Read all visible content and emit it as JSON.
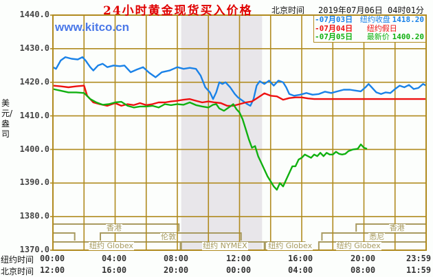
{
  "chart_data": {
    "type": "line",
    "title": "24小时黄金现货买入价格",
    "watermark": "www.kitco.cn",
    "timezone_label": "北京时间",
    "timestamp": "2019年07月06日 04时01分",
    "ylabel": "美元/盎司",
    "ylim": [
      1370,
      1440
    ],
    "y_ticks": [
      "1440.0",
      "1430.0",
      "1420.0",
      "1410.0",
      "1400.0",
      "1390.0",
      "1380.0",
      "1370.0"
    ],
    "x_rows": [
      {
        "label": "纽约时间",
        "ticks": [
          "00:00",
          "04:00",
          "08:00",
          "12:00",
          "16:00",
          "20:00",
          "23:59"
        ]
      },
      {
        "label": "北京时间",
        "ticks": [
          "12:00",
          "16:00",
          "20:00",
          "00:00",
          "04:00",
          "08:00",
          "11:59"
        ]
      }
    ],
    "grid": true,
    "legend_position": "top-right",
    "legend": [
      {
        "date": "-07月03日",
        "desc": "纽约收盘",
        "value": "1418.20",
        "color": "#1a82e8"
      },
      {
        "date": "-07月04日",
        "desc": "纽约假日",
        "value": "",
        "color": "#ee1010"
      },
      {
        "date": "-07月05日",
        "desc": "最新价",
        "value": "1400.20",
        "color": "#10b010"
      }
    ],
    "x_unit": "New York hour (0-24)",
    "series": [
      {
        "name": "07月03日",
        "color": "#1a82e8",
        "points": [
          [
            0,
            1424.5
          ],
          [
            0.2,
            1424
          ],
          [
            0.5,
            1426.5
          ],
          [
            0.8,
            1427.5
          ],
          [
            1.2,
            1427
          ],
          [
            1.6,
            1426.8
          ],
          [
            1.9,
            1427.5
          ],
          [
            2.1,
            1426.5
          ],
          [
            2.4,
            1424.5
          ],
          [
            2.6,
            1423.5
          ],
          [
            2.9,
            1425
          ],
          [
            3.2,
            1425.5
          ],
          [
            3.5,
            1424.5
          ],
          [
            3.9,
            1425
          ],
          [
            4.3,
            1424.8
          ],
          [
            4.6,
            1425
          ],
          [
            5,
            1423
          ],
          [
            5.4,
            1423.8
          ],
          [
            5.8,
            1424.5
          ],
          [
            6.2,
            1422.8
          ],
          [
            6.6,
            1421.5
          ],
          [
            7,
            1423
          ],
          [
            7.5,
            1423.5
          ],
          [
            8,
            1424.5
          ],
          [
            8.4,
            1424
          ],
          [
            8.8,
            1424.3
          ],
          [
            9.2,
            1424
          ],
          [
            9.5,
            1422
          ],
          [
            9.8,
            1418.5
          ],
          [
            10.1,
            1417
          ],
          [
            10.3,
            1415
          ],
          [
            10.5,
            1417
          ],
          [
            10.7,
            1420
          ],
          [
            10.9,
            1419.5
          ],
          [
            11.1,
            1420
          ],
          [
            11.4,
            1418.5
          ],
          [
            11.7,
            1416.5
          ],
          [
            11.9,
            1415.5
          ],
          [
            12.2,
            1414.5
          ],
          [
            12.5,
            1413.5
          ],
          [
            12.7,
            1413
          ],
          [
            12.9,
            1415
          ],
          [
            13.1,
            1419
          ],
          [
            13.3,
            1420.3
          ],
          [
            13.6,
            1419.5
          ],
          [
            13.9,
            1420.5
          ],
          [
            14.2,
            1419
          ],
          [
            14.5,
            1420.5
          ],
          [
            14.8,
            1420
          ],
          [
            15,
            1418.5
          ],
          [
            15.2,
            1416.5
          ],
          [
            15.5,
            1416
          ],
          [
            15.9,
            1416.3
          ],
          [
            16.3,
            1416.8
          ],
          [
            16.7,
            1416.3
          ],
          [
            17.1,
            1416.5
          ],
          [
            17.5,
            1417.2
          ],
          [
            17.9,
            1416.8
          ],
          [
            18.3,
            1417.3
          ],
          [
            18.7,
            1417.8
          ],
          [
            19.1,
            1417.8
          ],
          [
            19.5,
            1417.5
          ],
          [
            19.8,
            1417.3
          ],
          [
            20.1,
            1418.5
          ],
          [
            20.3,
            1419.5
          ],
          [
            20.5,
            1418.5
          ],
          [
            20.8,
            1417
          ],
          [
            21.1,
            1416.5
          ],
          [
            21.4,
            1417
          ],
          [
            21.7,
            1416.8
          ],
          [
            22,
            1418
          ],
          [
            22.3,
            1419
          ],
          [
            22.6,
            1418.5
          ],
          [
            22.9,
            1419.2
          ],
          [
            23.2,
            1418
          ],
          [
            23.5,
            1418.3
          ],
          [
            23.8,
            1419.5
          ],
          [
            24,
            1419
          ]
        ]
      },
      {
        "name": "07月04日",
        "color": "#ee1010",
        "points": [
          [
            0,
            1419
          ],
          [
            0.5,
            1418.8
          ],
          [
            1,
            1418.5
          ],
          [
            1.5,
            1418.8
          ],
          [
            2,
            1419
          ],
          [
            2.2,
            1416
          ],
          [
            2.6,
            1414
          ],
          [
            3,
            1413.5
          ],
          [
            3.5,
            1413
          ],
          [
            4,
            1413.8
          ],
          [
            4.4,
            1413
          ],
          [
            4.8,
            1413.5
          ],
          [
            5.2,
            1413.2
          ],
          [
            5.6,
            1413.8
          ],
          [
            6,
            1413.2
          ],
          [
            6.4,
            1413.5
          ],
          [
            6.8,
            1414
          ],
          [
            7.2,
            1414
          ],
          [
            7.6,
            1414.3
          ],
          [
            8,
            1414.5
          ],
          [
            8.4,
            1414.8
          ],
          [
            8.8,
            1415
          ],
          [
            9.2,
            1414.5
          ],
          [
            9.6,
            1414
          ],
          [
            10,
            1414.3
          ],
          [
            10.4,
            1414
          ],
          [
            10.8,
            1413.8
          ],
          [
            11.2,
            1413
          ],
          [
            11.6,
            1413
          ],
          [
            12,
            1413.5
          ],
          [
            12.4,
            1414
          ],
          [
            12.8,
            1414.3
          ],
          [
            13.2,
            1415.5
          ],
          [
            13.6,
            1416.7
          ],
          [
            14,
            1416
          ],
          [
            14.4,
            1415.8
          ],
          [
            14.8,
            1414.8
          ],
          [
            15.2,
            1415.3
          ],
          [
            15.6,
            1415.5
          ],
          [
            16,
            1415.5
          ],
          [
            16.4,
            1415.2
          ],
          [
            16.8,
            1415
          ],
          [
            17.2,
            1415
          ],
          [
            18,
            1415
          ],
          [
            19,
            1415
          ],
          [
            20,
            1415
          ],
          [
            21,
            1415
          ],
          [
            22,
            1415
          ],
          [
            23,
            1415
          ],
          [
            24,
            1415
          ]
        ]
      },
      {
        "name": "07月05日",
        "color": "#10b010",
        "points": [
          [
            0,
            1418
          ],
          [
            0.5,
            1417.5
          ],
          [
            1,
            1417
          ],
          [
            1.5,
            1417
          ],
          [
            2,
            1416.8
          ],
          [
            2.4,
            1415
          ],
          [
            2.8,
            1414
          ],
          [
            3.2,
            1413.3
          ],
          [
            3.6,
            1413.5
          ],
          [
            4,
            1414
          ],
          [
            4.4,
            1414.2
          ],
          [
            4.8,
            1413
          ],
          [
            5.2,
            1412.5
          ],
          [
            5.6,
            1412.8
          ],
          [
            6,
            1412.8
          ],
          [
            6.4,
            1413
          ],
          [
            6.8,
            1412.5
          ],
          [
            7.2,
            1413.5
          ],
          [
            7.6,
            1413.2
          ],
          [
            8,
            1413.5
          ],
          [
            8.4,
            1413.3
          ],
          [
            8.8,
            1414
          ],
          [
            9.2,
            1413.2
          ],
          [
            9.6,
            1412.8
          ],
          [
            10,
            1412.5
          ],
          [
            10.3,
            1413.3
          ],
          [
            10.5,
            1413.5
          ],
          [
            10.7,
            1412.2
          ],
          [
            11,
            1411.5
          ],
          [
            11.4,
            1412.8
          ],
          [
            11.6,
            1413.5
          ],
          [
            11.8,
            1412
          ],
          [
            12,
            1411
          ],
          [
            12.2,
            1409
          ],
          [
            12.4,
            1406
          ],
          [
            12.6,
            1403
          ],
          [
            12.8,
            1400.5
          ],
          [
            13,
            1401
          ],
          [
            13.2,
            1398
          ],
          [
            13.4,
            1396
          ],
          [
            13.6,
            1394
          ],
          [
            13.8,
            1392
          ],
          [
            14,
            1390.5
          ],
          [
            14.2,
            1389
          ],
          [
            14.4,
            1388
          ],
          [
            14.6,
            1390
          ],
          [
            14.8,
            1389
          ],
          [
            15,
            1391
          ],
          [
            15.2,
            1393
          ],
          [
            15.4,
            1395
          ],
          [
            15.6,
            1395
          ],
          [
            15.8,
            1397
          ],
          [
            16,
            1397.5
          ],
          [
            16.2,
            1398.5
          ],
          [
            16.4,
            1398
          ],
          [
            16.6,
            1397.5
          ],
          [
            16.8,
            1398.5
          ],
          [
            17,
            1398
          ],
          [
            17.2,
            1399
          ],
          [
            17.4,
            1398
          ],
          [
            17.6,
            1399
          ],
          [
            17.8,
            1398.5
          ],
          [
            18,
            1398.5
          ],
          [
            18.2,
            1399.3
          ],
          [
            18.4,
            1398.7
          ],
          [
            18.6,
            1398.5
          ],
          [
            18.8,
            1398.7
          ],
          [
            19,
            1399.5
          ],
          [
            19.3,
            1400
          ],
          [
            19.6,
            1400.2
          ],
          [
            19.8,
            1401.5
          ],
          [
            20,
            1400.5
          ],
          [
            20.2,
            1400.2
          ]
        ]
      }
    ],
    "shaded_region": {
      "from": 8.25,
      "to": 13.45,
      "label": "纽约 NYMEX"
    },
    "sessions": [
      {
        "label": "香港",
        "row": 0,
        "from": 0,
        "to": 8.1,
        "label_at": 3.4
      },
      {
        "label": "香港",
        "row": 0,
        "from": 19.5,
        "to": 24,
        "label_at": 21.6
      },
      {
        "label": "伦敦",
        "row": 1,
        "from": 3.05,
        "to": 12.1,
        "label_at": 6.9
      },
      {
        "label": "",
        "row": 1,
        "from": 0,
        "to": 1.4,
        "label_at": 0
      },
      {
        "label": "悉尼",
        "row": 1,
        "from": 17.3,
        "to": 24,
        "label_at": 20.3
      },
      {
        "label": "纽约 Globex",
        "row": 2,
        "from": 0,
        "to": 8.2,
        "label_at": 2.3
      },
      {
        "label": "纽约 NYMEX",
        "row": 2,
        "from": 8.25,
        "to": 13.6,
        "label_at": 9.6
      },
      {
        "label": "纽约 Globex",
        "row": 2,
        "from": 13.65,
        "to": 16.2,
        "label_at": 13.8
      },
      {
        "label": "纽约 Globex",
        "row": 2,
        "from": 17.1,
        "to": 24,
        "label_at": 18.2
      }
    ]
  }
}
